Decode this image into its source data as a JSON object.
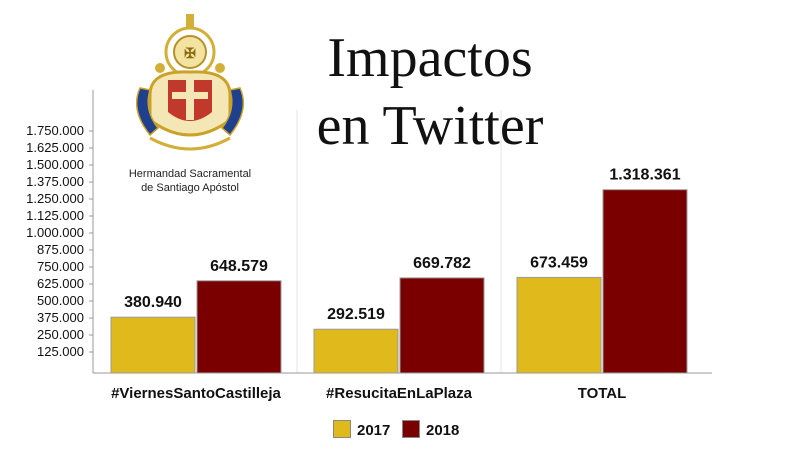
{
  "title_lines": [
    "Impactos",
    "en Twitter"
  ],
  "emblem": {
    "name": "crest-icon",
    "caption_lines": [
      "Hermandad Sacramental",
      "de Santiago Apóstol"
    ]
  },
  "colors": {
    "series_2017": "#E0B91C",
    "series_2018": "#7A0000",
    "gold": "#D4AF37",
    "emblem_red": "#C0392B"
  },
  "chart_data": {
    "type": "bar",
    "categories": [
      "#ViernesSantoCastilleja",
      "#ResucitaEnLaPlaza",
      "TOTAL"
    ],
    "series": [
      {
        "name": "2017",
        "values": [
          380940,
          292519,
          673459
        ],
        "labels": [
          "380.940",
          "292.519",
          "673.459"
        ]
      },
      {
        "name": "2018",
        "values": [
          648579,
          669782,
          1318361
        ],
        "labels": [
          "648.579",
          "669.782",
          "1.318.361"
        ]
      }
    ],
    "yticks": [
      "125.000",
      "250.000",
      "375.000",
      "500.000",
      "625.000",
      "750.000",
      "875.000",
      "1.000.000",
      "1.125.000",
      "1.250.000",
      "1.375.000",
      "1.500.000",
      "1.625.000",
      "1.750.000"
    ],
    "ytick_values": [
      125000,
      250000,
      375000,
      500000,
      625000,
      750000,
      875000,
      1000000,
      1125000,
      1250000,
      1375000,
      1500000,
      1625000,
      1750000
    ],
    "ylim": [
      0,
      2000000
    ],
    "grid": true,
    "legend": "bottom",
    "xlabel": "",
    "ylabel": ""
  }
}
